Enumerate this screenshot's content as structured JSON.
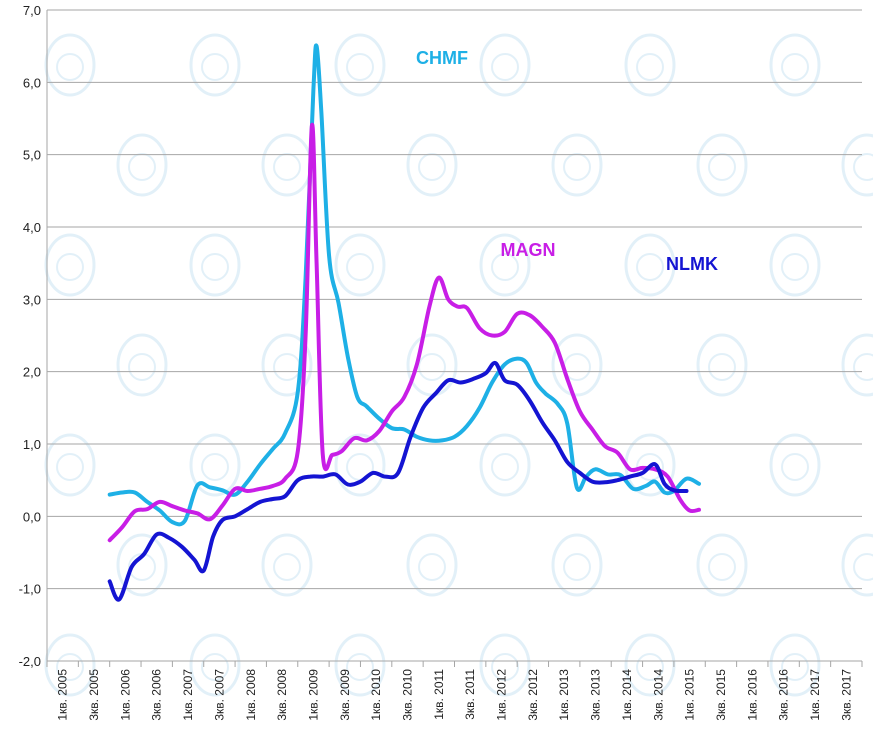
{
  "chart_data": {
    "type": "line",
    "grid": true,
    "ylim": [
      -2.0,
      7.0
    ],
    "y_ticks": [
      "-2,0",
      "-1,0",
      "0,0",
      "1,0",
      "2,0",
      "3,0",
      "4,0",
      "5,0",
      "6,0",
      "7,0"
    ],
    "x_ticks": [
      "1кв. 2005",
      "3кв. 2005",
      "1кв. 2006",
      "3кв. 2006",
      "1кв. 2007",
      "3кв. 2007",
      "1кв. 2008",
      "3кв. 2008",
      "1кв. 2009",
      "3кв. 2009",
      "1кв. 2010",
      "3кв. 2010",
      "1кв. 2011",
      "3кв. 2011",
      "1кв. 2012",
      "3кв. 2012",
      "1кв. 2013",
      "3кв. 2013",
      "1кв. 2014",
      "3кв. 2014",
      "1кв. 2015",
      "3кв. 2015",
      "1кв. 2016",
      "3кв. 2016",
      "1кв. 2017",
      "3кв. 2017"
    ],
    "series": [
      {
        "name": "CHMF",
        "color": "#1eb0e6",
        "points": [
          [
            2.0,
            0.3
          ],
          [
            2.4,
            0.33
          ],
          [
            2.8,
            0.33
          ],
          [
            3.2,
            0.2
          ],
          [
            3.6,
            0.08
          ],
          [
            4.0,
            -0.08
          ],
          [
            4.4,
            -0.06
          ],
          [
            4.8,
            0.43
          ],
          [
            5.2,
            0.4
          ],
          [
            5.6,
            0.36
          ],
          [
            6.0,
            0.3
          ],
          [
            6.4,
            0.48
          ],
          [
            6.8,
            0.72
          ],
          [
            7.2,
            0.93
          ],
          [
            7.6,
            1.15
          ],
          [
            8.0,
            1.72
          ],
          [
            8.25,
            3.3
          ],
          [
            8.5,
            5.9
          ],
          [
            8.6,
            6.5
          ],
          [
            8.75,
            5.6
          ],
          [
            9.0,
            3.6
          ],
          [
            9.3,
            2.95
          ],
          [
            9.6,
            2.2
          ],
          [
            9.9,
            1.65
          ],
          [
            10.2,
            1.52
          ],
          [
            10.6,
            1.35
          ],
          [
            11.0,
            1.22
          ],
          [
            11.4,
            1.2
          ],
          [
            11.8,
            1.1
          ],
          [
            12.2,
            1.05
          ],
          [
            12.6,
            1.05
          ],
          [
            13.0,
            1.1
          ],
          [
            13.4,
            1.25
          ],
          [
            13.8,
            1.5
          ],
          [
            14.2,
            1.85
          ],
          [
            14.6,
            2.1
          ],
          [
            15.0,
            2.18
          ],
          [
            15.3,
            2.12
          ],
          [
            15.6,
            1.85
          ],
          [
            15.9,
            1.7
          ],
          [
            16.3,
            1.55
          ],
          [
            16.6,
            1.28
          ],
          [
            16.9,
            0.4
          ],
          [
            17.2,
            0.55
          ],
          [
            17.5,
            0.65
          ],
          [
            17.9,
            0.58
          ],
          [
            18.3,
            0.57
          ],
          [
            18.7,
            0.38
          ],
          [
            19.1,
            0.42
          ],
          [
            19.4,
            0.48
          ],
          [
            19.7,
            0.33
          ],
          [
            20.0,
            0.35
          ],
          [
            20.4,
            0.52
          ],
          [
            20.8,
            0.45
          ]
        ]
      },
      {
        "name": "MAGN",
        "color": "#c81ee6",
        "points": [
          [
            2.0,
            -0.33
          ],
          [
            2.4,
            -0.15
          ],
          [
            2.8,
            0.07
          ],
          [
            3.2,
            0.1
          ],
          [
            3.6,
            0.2
          ],
          [
            4.0,
            0.14
          ],
          [
            4.4,
            0.08
          ],
          [
            4.8,
            0.04
          ],
          [
            5.2,
            -0.04
          ],
          [
            5.6,
            0.15
          ],
          [
            6.0,
            0.38
          ],
          [
            6.4,
            0.35
          ],
          [
            6.8,
            0.38
          ],
          [
            7.2,
            0.42
          ],
          [
            7.6,
            0.52
          ],
          [
            8.0,
            0.9
          ],
          [
            8.25,
            2.5
          ],
          [
            8.45,
            5.4
          ],
          [
            8.6,
            3.5
          ],
          [
            8.8,
            0.85
          ],
          [
            9.1,
            0.85
          ],
          [
            9.4,
            0.9
          ],
          [
            9.8,
            1.08
          ],
          [
            10.2,
            1.05
          ],
          [
            10.6,
            1.18
          ],
          [
            11.0,
            1.45
          ],
          [
            11.4,
            1.65
          ],
          [
            11.8,
            2.1
          ],
          [
            12.2,
            2.9
          ],
          [
            12.5,
            3.3
          ],
          [
            12.8,
            3.0
          ],
          [
            13.1,
            2.9
          ],
          [
            13.4,
            2.88
          ],
          [
            13.8,
            2.6
          ],
          [
            14.2,
            2.5
          ],
          [
            14.6,
            2.55
          ],
          [
            15.0,
            2.8
          ],
          [
            15.4,
            2.78
          ],
          [
            15.8,
            2.62
          ],
          [
            16.2,
            2.4
          ],
          [
            16.6,
            1.9
          ],
          [
            17.0,
            1.45
          ],
          [
            17.4,
            1.2
          ],
          [
            17.8,
            0.97
          ],
          [
            18.2,
            0.88
          ],
          [
            18.6,
            0.65
          ],
          [
            19.0,
            0.67
          ],
          [
            19.4,
            0.65
          ],
          [
            19.8,
            0.55
          ],
          [
            20.2,
            0.23
          ],
          [
            20.5,
            0.08
          ],
          [
            20.8,
            0.09
          ]
        ]
      },
      {
        "name": "NLMK",
        "color": "#1414d2",
        "points": [
          [
            2.0,
            -0.9
          ],
          [
            2.3,
            -1.15
          ],
          [
            2.7,
            -0.7
          ],
          [
            3.1,
            -0.52
          ],
          [
            3.5,
            -0.25
          ],
          [
            3.9,
            -0.3
          ],
          [
            4.3,
            -0.42
          ],
          [
            4.7,
            -0.6
          ],
          [
            5.0,
            -0.75
          ],
          [
            5.3,
            -0.28
          ],
          [
            5.6,
            -0.05
          ],
          [
            6.0,
            0.0
          ],
          [
            6.4,
            0.1
          ],
          [
            6.8,
            0.2
          ],
          [
            7.2,
            0.24
          ],
          [
            7.6,
            0.28
          ],
          [
            8.0,
            0.5
          ],
          [
            8.4,
            0.55
          ],
          [
            8.8,
            0.55
          ],
          [
            9.2,
            0.58
          ],
          [
            9.6,
            0.44
          ],
          [
            10.0,
            0.48
          ],
          [
            10.4,
            0.6
          ],
          [
            10.8,
            0.55
          ],
          [
            11.2,
            0.6
          ],
          [
            11.6,
            1.1
          ],
          [
            12.0,
            1.5
          ],
          [
            12.4,
            1.7
          ],
          [
            12.8,
            1.88
          ],
          [
            13.2,
            1.85
          ],
          [
            13.6,
            1.9
          ],
          [
            14.0,
            1.98
          ],
          [
            14.3,
            2.12
          ],
          [
            14.6,
            1.88
          ],
          [
            15.0,
            1.82
          ],
          [
            15.4,
            1.6
          ],
          [
            15.8,
            1.3
          ],
          [
            16.2,
            1.05
          ],
          [
            16.6,
            0.75
          ],
          [
            17.0,
            0.6
          ],
          [
            17.4,
            0.48
          ],
          [
            17.8,
            0.47
          ],
          [
            18.2,
            0.5
          ],
          [
            18.6,
            0.55
          ],
          [
            19.0,
            0.6
          ],
          [
            19.4,
            0.72
          ],
          [
            19.7,
            0.45
          ],
          [
            20.0,
            0.36
          ],
          [
            20.4,
            0.35
          ]
        ]
      }
    ]
  }
}
